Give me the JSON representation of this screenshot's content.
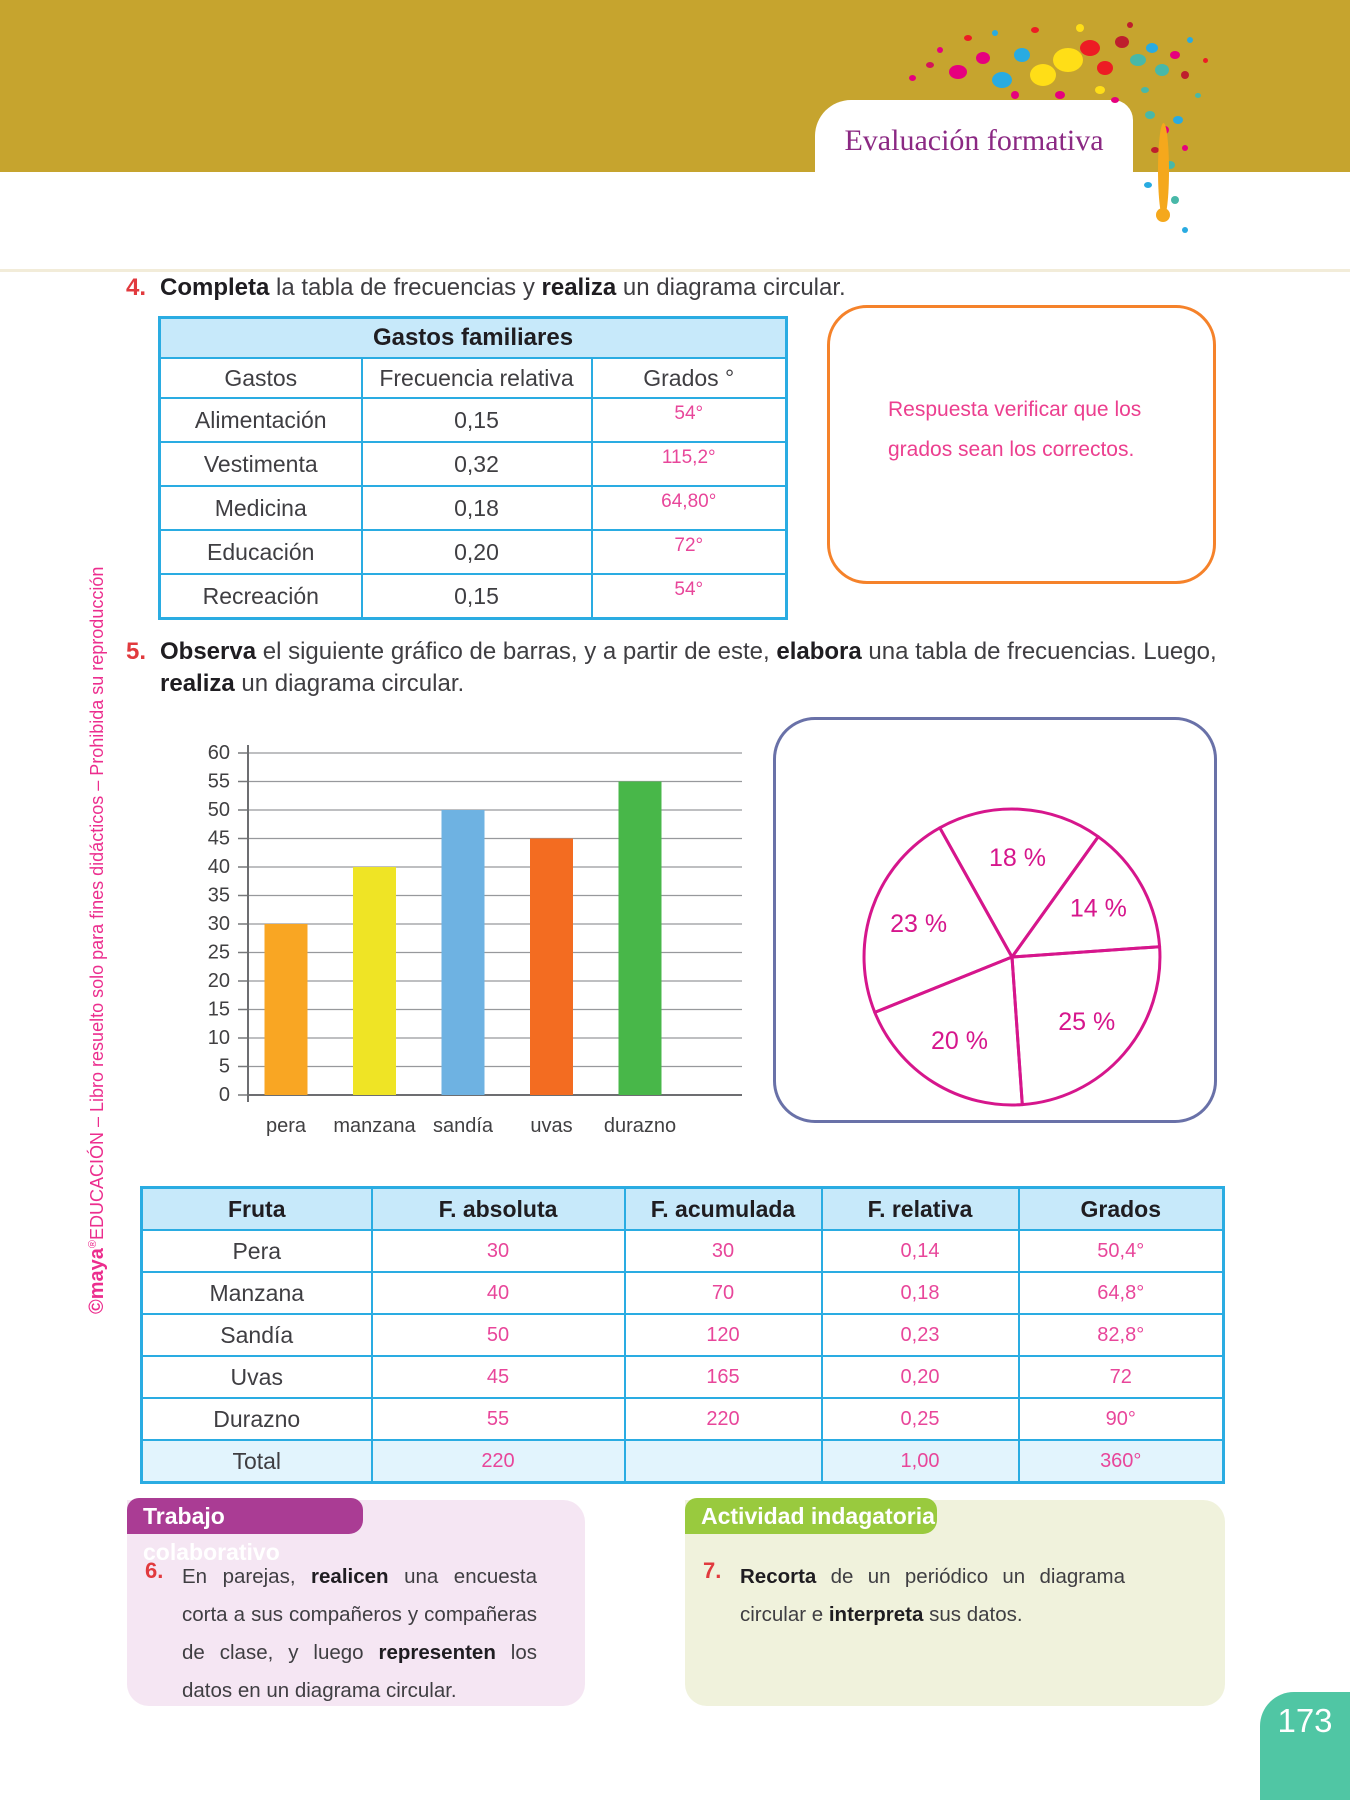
{
  "header": {
    "title": "Evaluación formativa"
  },
  "sidebar": {
    "brand_bold": "©maya",
    "reg_mark": "®",
    "brand_rest": "EDUCACIÓN",
    "tail": " – Libro resuelto solo para fines didácticos – Prohibida su reproducción"
  },
  "exercise4": {
    "number": "4.",
    "prompt": [
      {
        "text": "Completa",
        "bold": true
      },
      {
        "text": " la tabla de frecuencias y ",
        "bold": false
      },
      {
        "text": "realiza",
        "bold": true
      },
      {
        "text": " un diagrama circular.",
        "bold": false
      }
    ],
    "table": {
      "title": "Gastos familiares",
      "headers": [
        "Gastos",
        "Frecuencia relativa",
        "Grados °"
      ],
      "rows": [
        {
          "label": "Alimentación",
          "freq": "0,15",
          "answer": "54°"
        },
        {
          "label": "Vestimenta",
          "freq": "0,32",
          "answer": "115,2°"
        },
        {
          "label": "Medicina",
          "freq": "0,18",
          "answer": "64,80°"
        },
        {
          "label": "Educación",
          "freq": "0,20",
          "answer": "72°"
        },
        {
          "label": "Recreación",
          "freq": "0,15",
          "answer": "54°"
        }
      ]
    },
    "note_lines": [
      "Respuesta verificar que los",
      "grados sean los correctos."
    ]
  },
  "exercise5": {
    "number": "5.",
    "prompt_line1": [
      {
        "text": "Observa",
        "bold": true
      },
      {
        "text": " el siguiente gráfico de barras, y a partir de este, ",
        "bold": false
      },
      {
        "text": "elabora",
        "bold": true
      },
      {
        "text": " una tabla de frecuencias. Luego,",
        "bold": false
      }
    ],
    "prompt_line2": [
      {
        "text": "realiza",
        "bold": true
      },
      {
        "text": " un diagrama circular.",
        "bold": false
      }
    ]
  },
  "chart_data": [
    {
      "type": "bar",
      "categories": [
        "pera",
        "manzana",
        "sandía",
        "uvas",
        "durazno"
      ],
      "values": [
        30,
        40,
        50,
        45,
        55
      ],
      "bar_colors": [
        "#F9A623",
        "#EFE425",
        "#6EB2E2",
        "#F36C21",
        "#48B749"
      ],
      "title": "",
      "xlabel": "",
      "ylabel": "",
      "ylim": [
        0,
        60
      ],
      "ytick_step": 5,
      "grid": true,
      "legend": false
    },
    {
      "type": "pie",
      "labels": [
        "25 %",
        "20 %",
        "23 %",
        "18 %",
        "14 %"
      ],
      "values": [
        25,
        20,
        23,
        18,
        14
      ],
      "start_angle_deg": -4,
      "direction": "clockwise",
      "style": "outline-only",
      "outline_color": "#D6168C"
    }
  ],
  "fruit_table": {
    "headers": [
      "Fruta",
      "F. absoluta",
      "F. acumulada",
      "F. relativa",
      "Grados"
    ],
    "rows": [
      {
        "label": "Pera",
        "absoluta": "30",
        "acumulada": "30",
        "relativa": "0,14",
        "grados": "50,4°",
        "total": false
      },
      {
        "label": "Manzana",
        "absoluta": "40",
        "acumulada": "70",
        "relativa": "0,18",
        "grados": "64,8°",
        "total": false
      },
      {
        "label": "Sandía",
        "absoluta": "50",
        "acumulada": "120",
        "relativa": "0,23",
        "grados": "82,8°",
        "total": false
      },
      {
        "label": "Uvas",
        "absoluta": "45",
        "acumulada": "165",
        "relativa": "0,20",
        "grados": "72",
        "total": false
      },
      {
        "label": "Durazno",
        "absoluta": "55",
        "acumulada": "220",
        "relativa": "0,25",
        "grados": "90°",
        "total": false
      },
      {
        "label": "Total",
        "absoluta": "220",
        "acumulada": "",
        "relativa": "1,00",
        "grados": "360°",
        "total": true
      }
    ]
  },
  "collab_box": {
    "title": "Trabajo colaborativo",
    "number": "6.",
    "text": [
      {
        "text": "En parejas, ",
        "bold": false
      },
      {
        "text": "realicen",
        "bold": true
      },
      {
        "text": " una encuesta corta a sus compañeros y compañeras de clase, y luego ",
        "bold": false
      },
      {
        "text": "representen",
        "bold": true
      },
      {
        "text": " los datos en un diagrama circular.",
        "bold": false
      }
    ]
  },
  "inquiry_box": {
    "title": "Actividad indagatoria",
    "number": "7.",
    "text": [
      {
        "text": "Recorta",
        "bold": true
      },
      {
        "text": " de un periódico un diagrama circular e ",
        "bold": false
      },
      {
        "text": "interpreta",
        "bold": true
      },
      {
        "text": " sus datos.",
        "bold": false
      }
    ]
  },
  "page_number": "173",
  "colors": {
    "band_gold": "#C6A42E",
    "title_purple": "#8B2983",
    "table_border_cyan": "#2AACE2",
    "table_header_bg": "#C7E9FA",
    "total_row_bg": "#E2F4FD",
    "answer_pink": "#E8469A",
    "note_border_orange": "#F5822A",
    "pie_box_border": "#6971A8",
    "pie_outline": "#D6168C",
    "collab_tab": "#AA3C94",
    "collab_body": "#F5E6F3",
    "inquiry_tab": "#99CA3E",
    "inquiry_body": "#F0F2DC",
    "page_tab_teal": "#50C6A4",
    "number_red": "#E13A3E"
  }
}
